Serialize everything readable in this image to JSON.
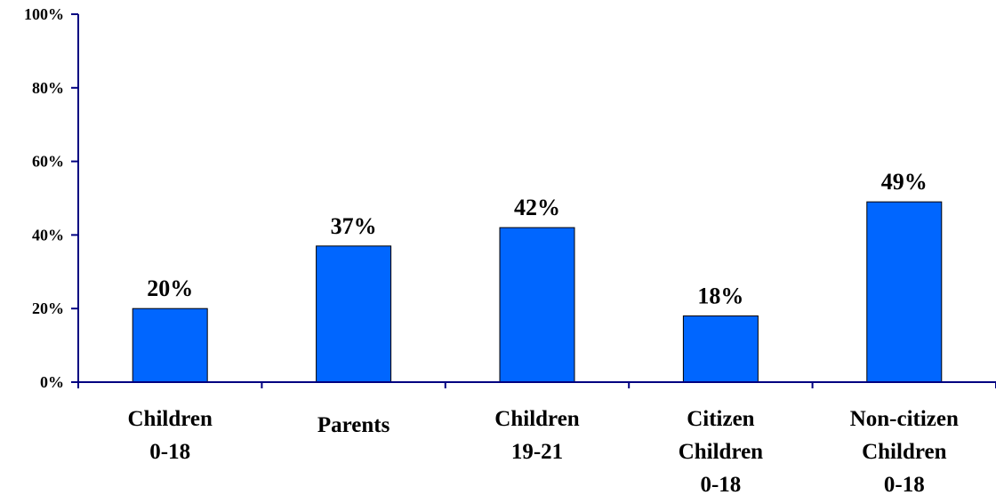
{
  "chart_data": {
    "type": "bar",
    "title": "",
    "xlabel": "",
    "ylabel": "",
    "ylim": [
      0,
      100
    ],
    "yticks": [
      0,
      20,
      40,
      60,
      80,
      100
    ],
    "ytick_labels": [
      "0%",
      "20%",
      "40%",
      "60%",
      "80%",
      "100%"
    ],
    "categories": [
      [
        "Children",
        "0-18"
      ],
      [
        "Parents"
      ],
      [
        "Children",
        "19-21"
      ],
      [
        "Citizen",
        "Children",
        "0-18"
      ],
      [
        "Non-citizen",
        "Children",
        "0-18"
      ]
    ],
    "values": [
      20,
      37,
      42,
      18,
      49
    ],
    "data_labels": [
      "20%",
      "37%",
      "42%",
      "18%",
      "49%"
    ],
    "bar_color": "#0066FF",
    "bar_edge_color": "#000000",
    "axis_color": "#000080",
    "grid": false,
    "legend": "none"
  }
}
